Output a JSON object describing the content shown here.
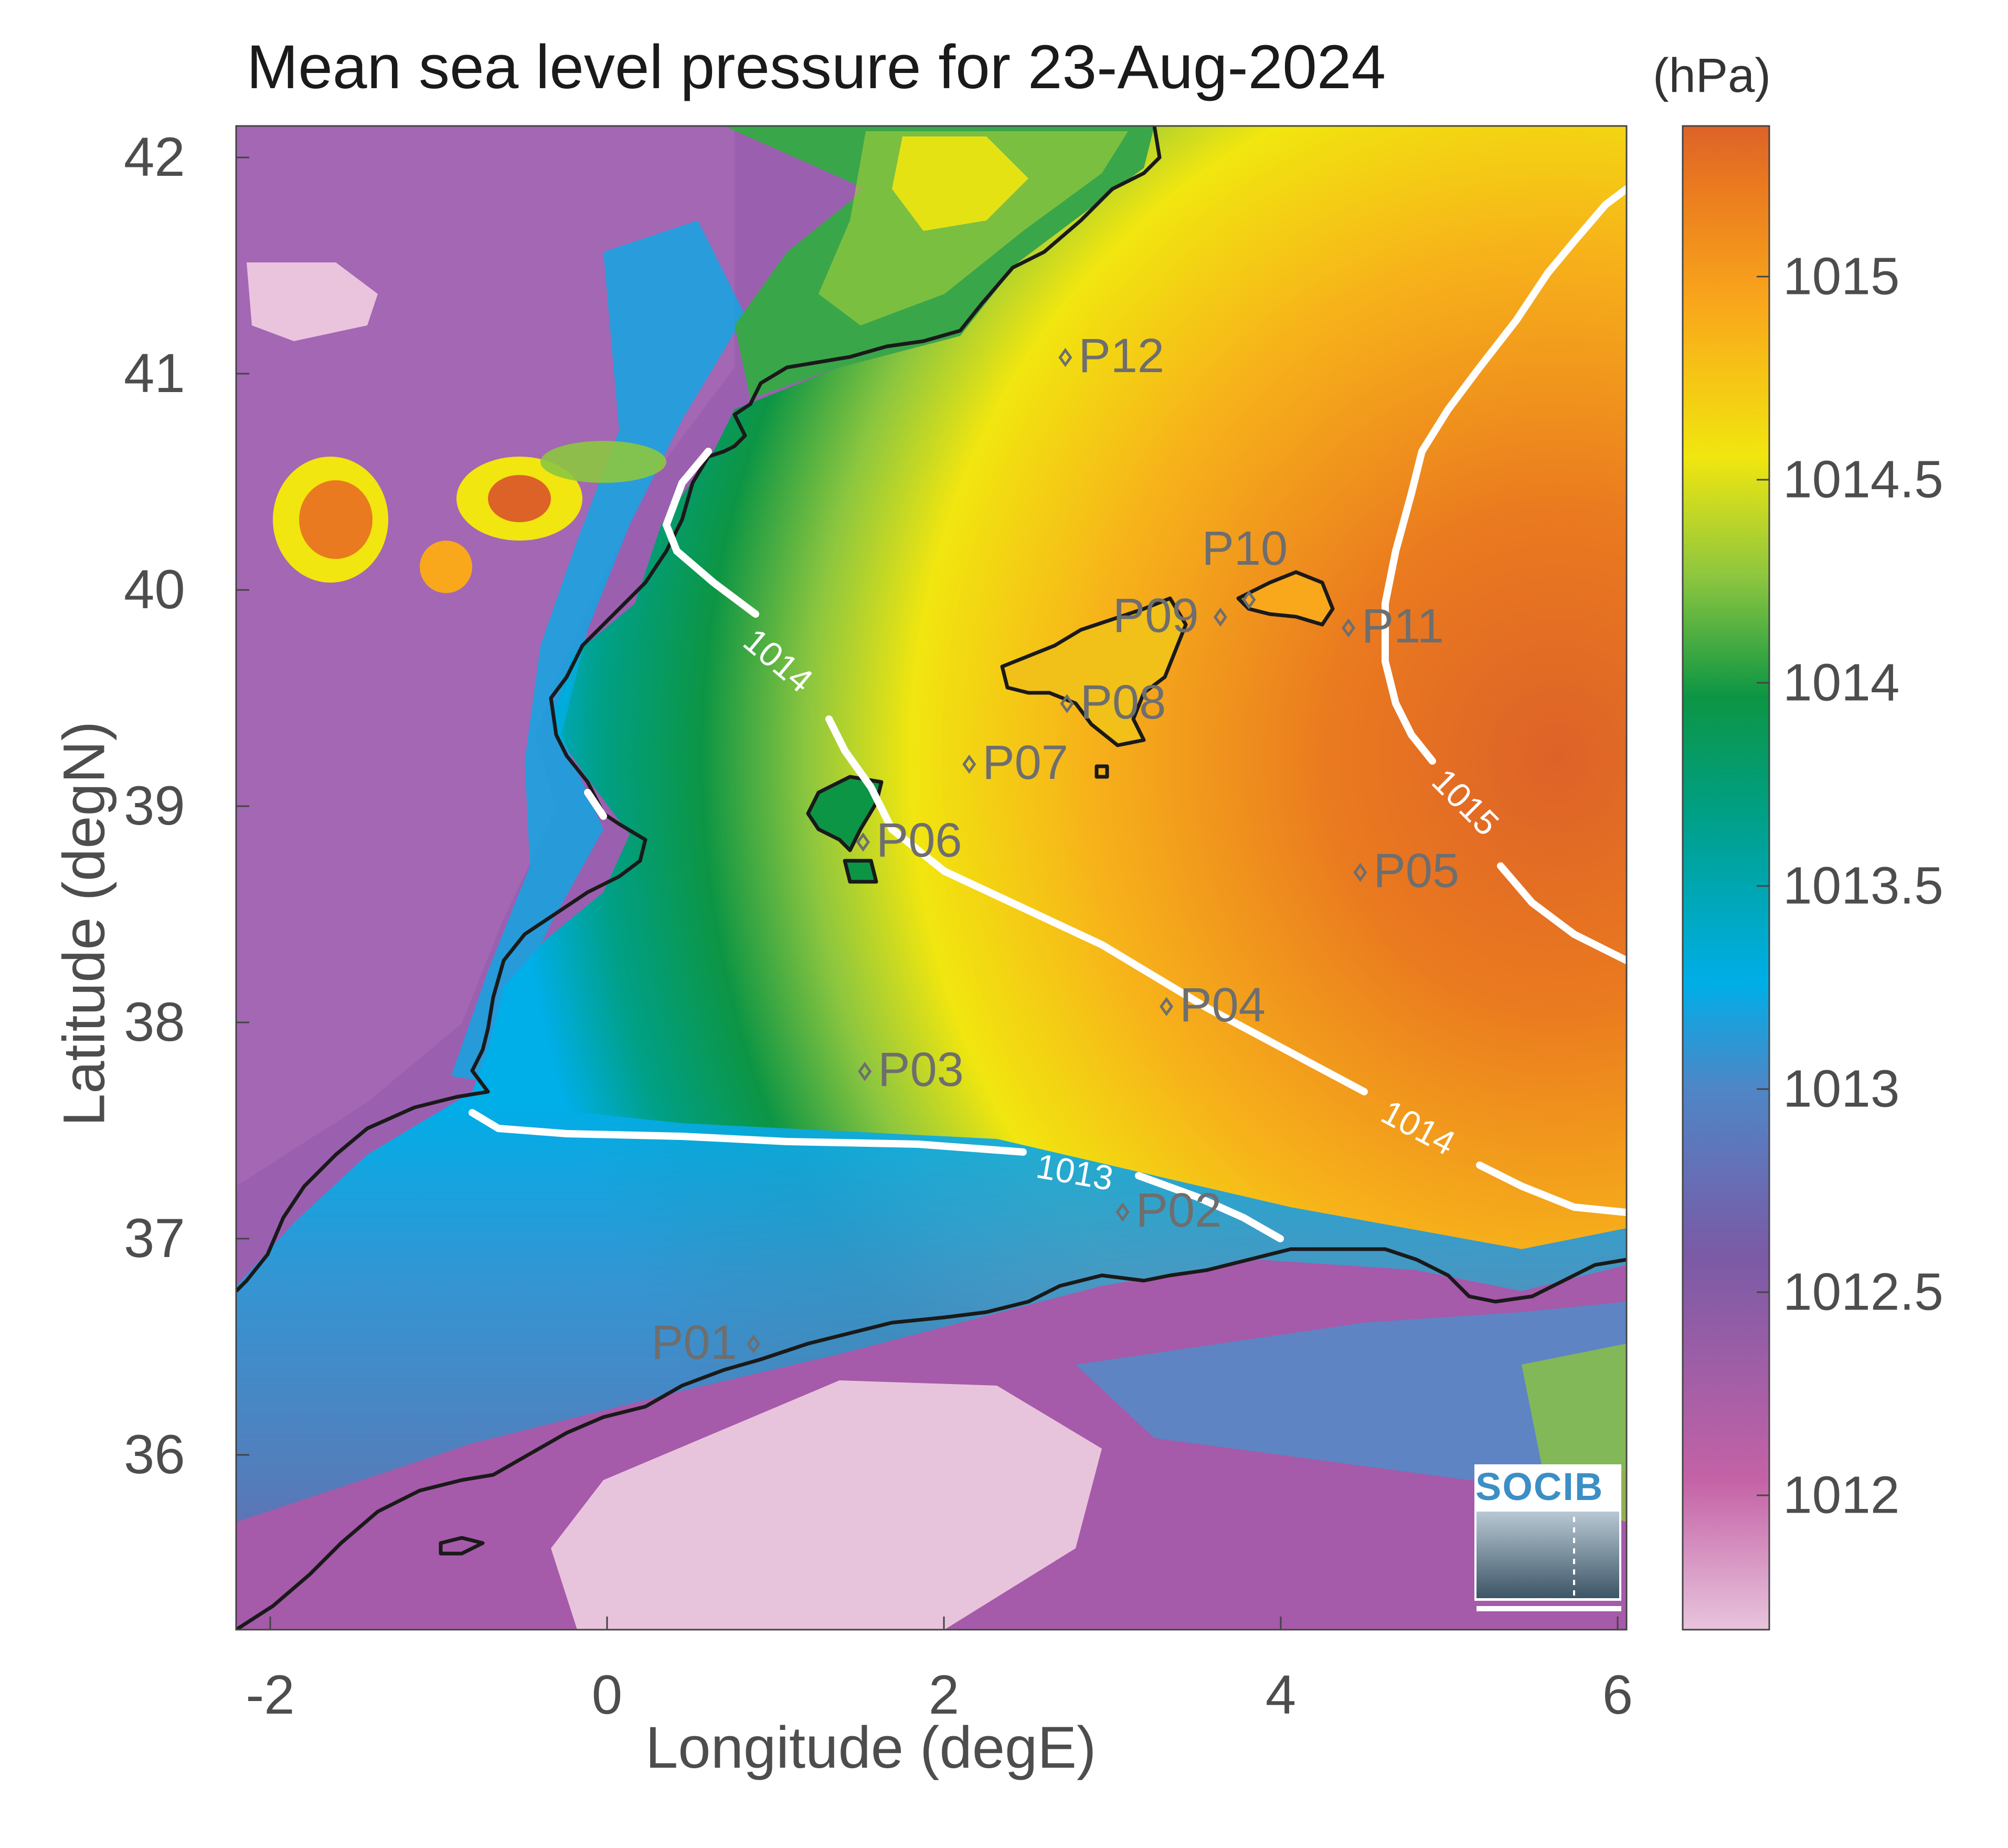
{
  "figure": {
    "title": "Mean sea level pressure for 23-Aug-2024",
    "units": "(hPa)",
    "xlabel": "Longitude (degE)",
    "ylabel": "Latitude (degN)",
    "logo_text": "SOCIB"
  },
  "axes": {
    "lon_range": [
      -2.25,
      6.0
    ],
    "lat_range": [
      35.2,
      42.15
    ],
    "lon_ticks": [
      "-2",
      "0",
      "2",
      "4",
      "6"
    ],
    "lat_ticks": [
      "42",
      "41",
      "40",
      "39",
      "38",
      "37",
      "36"
    ]
  },
  "colorbar": {
    "range": [
      1011.65,
      1015.35
    ],
    "ticks": [
      "1015",
      "1014.5",
      "1014",
      "1013.5",
      "1013",
      "1012.5",
      "1012"
    ],
    "colors": [
      "#e8c4dc",
      "#c462a6",
      "#7a5aa6",
      "#4f86c6",
      "#00aee8",
      "#00a088",
      "#0c9544",
      "#8cc63f",
      "#f1e60f",
      "#f9a81b",
      "#ea7a1f",
      "#dd6228"
    ]
  },
  "contours": [
    {
      "label": "1013",
      "color": "#ffffff"
    },
    {
      "label": "1014",
      "color": "#ffffff"
    },
    {
      "label": "1015",
      "color": "#ffffff"
    }
  ],
  "stations": [
    {
      "name": "P01",
      "lon": 0.82,
      "lat": 36.52
    },
    {
      "name": "P02",
      "lon": 3.01,
      "lat": 37.13
    },
    {
      "name": "P03",
      "lon": 1.48,
      "lat": 37.78
    },
    {
      "name": "P04",
      "lon": 3.27,
      "lat": 38.08
    },
    {
      "name": "P05",
      "lon": 4.42,
      "lat": 38.7
    },
    {
      "name": "P06",
      "lon": 1.47,
      "lat": 38.84
    },
    {
      "name": "P07",
      "lon": 2.1,
      "lat": 39.2
    },
    {
      "name": "P08",
      "lon": 2.68,
      "lat": 39.48
    },
    {
      "name": "P09",
      "lon": 3.59,
      "lat": 39.88
    },
    {
      "name": "P10",
      "lon": 3.76,
      "lat": 39.96
    },
    {
      "name": "P11",
      "lon": 4.35,
      "lat": 39.83
    },
    {
      "name": "P12",
      "lon": 2.67,
      "lat": 41.08
    }
  ],
  "chart_data": {
    "type": "heatmap",
    "title": "Mean sea level pressure for 23-Aug-2024",
    "xlabel": "Longitude (degE)",
    "ylabel": "Latitude (degN)",
    "colorbar_label": "(hPa)",
    "xlim": [
      -2.25,
      6.0
    ],
    "ylim": [
      35.2,
      42.15
    ],
    "clim": [
      1011.65,
      1015.35
    ],
    "contour_levels": [
      1013,
      1014,
      1015
    ],
    "approx_sea_pressure": [
      {
        "lon": -1.8,
        "lat": 36.2,
        "value": 1012.6
      },
      {
        "lon": 0.5,
        "lat": 37.5,
        "value": 1013.0
      },
      {
        "lon": 1.0,
        "lat": 38.8,
        "value": 1013.7
      },
      {
        "lon": 3.2,
        "lat": 38.5,
        "value": 1014.3
      },
      {
        "lon": 2.7,
        "lat": 40.6,
        "value": 1014.55
      },
      {
        "lon": 5.6,
        "lat": 39.5,
        "value": 1015.2
      },
      {
        "lon": 4.5,
        "lat": 37.5,
        "value": 1013.9
      }
    ]
  }
}
